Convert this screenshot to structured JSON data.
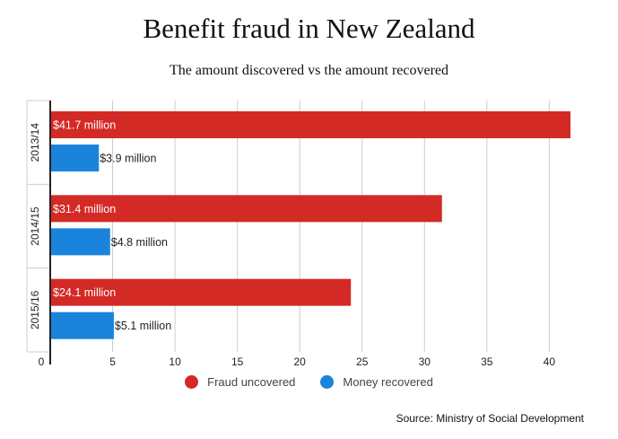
{
  "colors": {
    "fraud": "#d42a26",
    "recovered": "#1a84dc",
    "grid": "#cccccc",
    "axis": "#222222"
  },
  "chart_data": {
    "type": "bar",
    "orientation": "horizontal",
    "title": "Benefit fraud in New Zealand",
    "subtitle": "The amount discovered vs the amount recovered",
    "categories": [
      "2013/14",
      "2014/15",
      "2015/16"
    ],
    "series": [
      {
        "name": "Fraud uncovered",
        "values": [
          41.7,
          31.4,
          24.1
        ],
        "labels": [
          "$41.7 million",
          "$31.4 million",
          "$24.1 million"
        ]
      },
      {
        "name": "Money recovered",
        "values": [
          3.9,
          4.8,
          5.1
        ],
        "labels": [
          "$3.9 million",
          "$4.8 million",
          "$5.1 million"
        ]
      }
    ],
    "xlim": [
      0,
      44
    ],
    "xticks": [
      0,
      5,
      10,
      15,
      20,
      25,
      30,
      35,
      40
    ],
    "grid": true,
    "legend_position": "bottom"
  },
  "source": "Source: Ministry of Social Development"
}
